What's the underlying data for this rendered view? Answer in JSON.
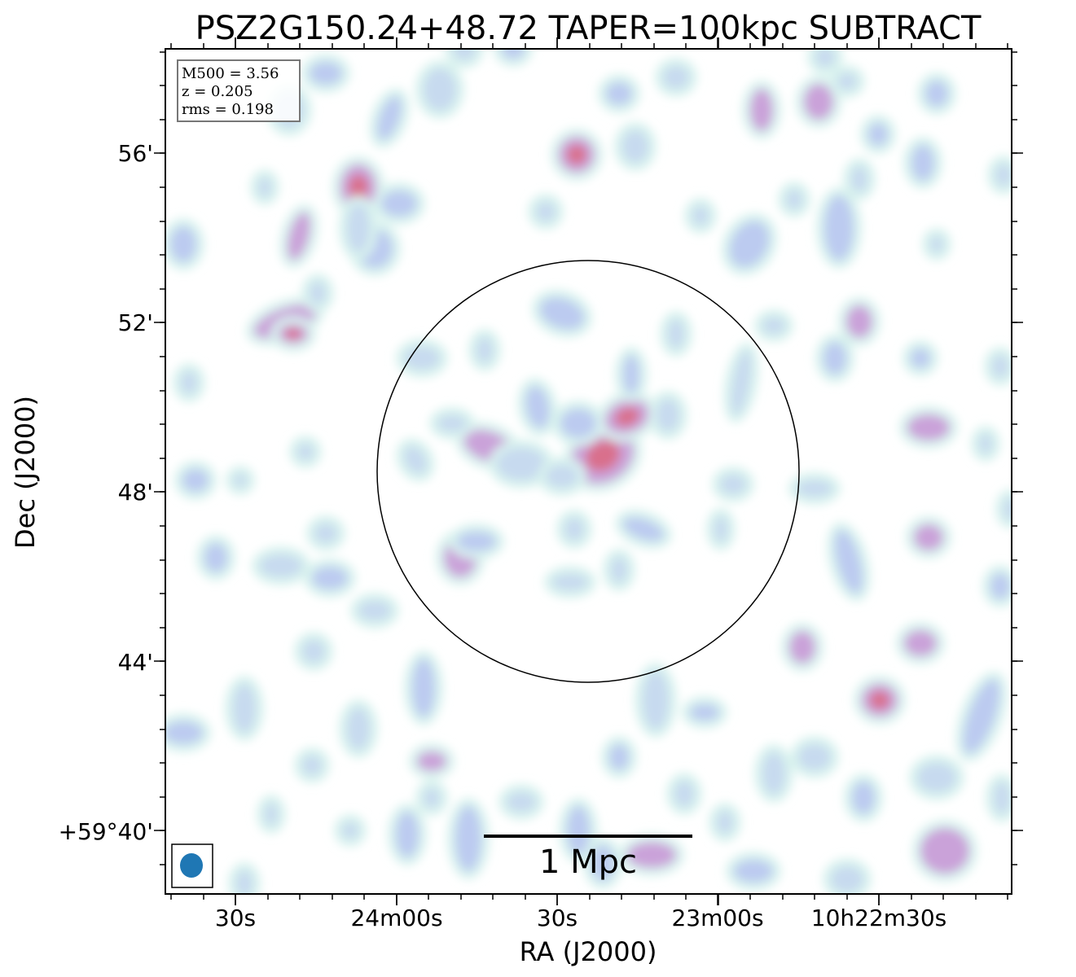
{
  "chart_data": {
    "type": "image",
    "title": "PSZ2G150.24+48.72 TAPER=100kpc SUBTRACT",
    "xlabel": "RA (J2000)",
    "ylabel": "Dec (J2000)",
    "x_ticks": [
      "30s",
      "24m00s",
      "30s",
      "23m00s",
      "10h22m30s"
    ],
    "y_ticks": [
      "+59°40'",
      "44'",
      "48'",
      "52'",
      "56'"
    ],
    "info_box": [
      "M500 = 3.56",
      "z = 0.205",
      "rms = 0.198"
    ],
    "scale_bar_label": "1 Mpc",
    "colors": {
      "low": "#d8f2ee",
      "mid": "#b9c6f0",
      "high": "#c999d6",
      "peak": "#d9708c",
      "beam": "#1f77b4",
      "circle": "#000000"
    },
    "circle": {
      "description": "cluster aperture"
    },
    "emission_peaks": [
      {
        "name": "central-source-north",
        "intensity": 1.0
      },
      {
        "name": "central-source-south",
        "intensity": 1.0
      },
      {
        "name": "west-knot",
        "intensity": 0.85
      },
      {
        "name": "northwest-knot",
        "intensity": 0.9
      },
      {
        "name": "north-knot",
        "intensity": 0.9
      },
      {
        "name": "southeast-knot",
        "intensity": 0.9
      }
    ]
  }
}
